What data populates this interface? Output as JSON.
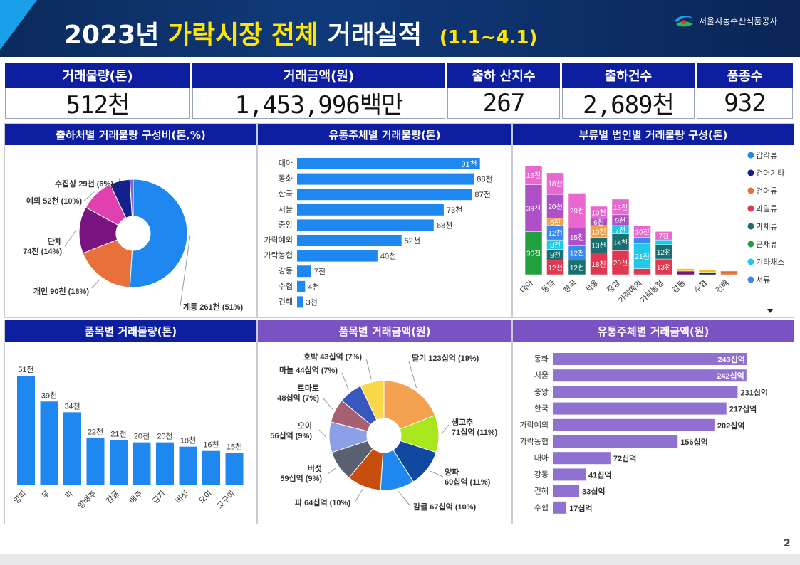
{
  "header": {
    "title_year": "2023년",
    "title_highlight": "가락시장 전체",
    "title_rest": "거래실적",
    "period": "(1.1~4.1)",
    "org": "서울시농수산식품공사"
  },
  "kpis": [
    {
      "label": "거래물량(톤)",
      "value": "512천"
    },
    {
      "label": "거래금액(원)",
      "value": "1,453,996백만"
    },
    {
      "label": "출하 산지수",
      "value": "267"
    },
    {
      "label": "출하건수",
      "value": "2,689천"
    },
    {
      "label": "품종수",
      "value": "932"
    }
  ],
  "page_number": "2",
  "colors": {
    "navy": "#0d1ea0",
    "purple": "#7a52c4",
    "bar_blue": "#1e88f0",
    "bar_purple": "#9070d0"
  },
  "chart_data": [
    {
      "id": "shipper-donut",
      "type": "pie",
      "title": "출하처별 거래물량 구성비(톤,%)",
      "slices": [
        {
          "label": "계통 261천 (51%)",
          "value": 51,
          "color": "#1e88f0"
        },
        {
          "label": "개인 90천 (18%)",
          "value": 18,
          "color": "#e8703a"
        },
        {
          "label": "단체 74천 (14%)",
          "value": 14,
          "color": "#7a1480"
        },
        {
          "label": "예외 52천 (10%)",
          "value": 10,
          "color": "#e040b0"
        },
        {
          "label": "수집상 29천 (6%)",
          "value": 6,
          "color": "#14208c"
        },
        {
          "label": "",
          "value": 1,
          "color": "#8c64d0"
        }
      ]
    },
    {
      "id": "distributor-volume",
      "type": "bar",
      "title": "유통주체별 거래물량(톤)",
      "categories": [
        "대아",
        "동화",
        "한국",
        "서울",
        "중앙",
        "가락예외",
        "가락농협",
        "강동",
        "수협",
        "건해"
      ],
      "values": [
        91,
        88,
        87,
        73,
        68,
        52,
        40,
        7,
        4,
        3
      ],
      "labels": [
        "91천",
        "88천",
        "87천",
        "73천",
        "68천",
        "52천",
        "40천",
        "7천",
        "4천",
        "3천"
      ],
      "xlim": [
        0,
        95
      ]
    },
    {
      "id": "corp-category",
      "type": "bar",
      "title": "부류별 법인별 거래물량 구성(톤)",
      "categories": [
        "대아",
        "동화",
        "한국",
        "서울",
        "중앙",
        "가락예외",
        "가락농협",
        "강동",
        "수협",
        "건해"
      ],
      "legend": [
        {
          "name": "갑각류",
          "color": "#1e88f0"
        },
        {
          "name": "건어기타",
          "color": "#14208c"
        },
        {
          "name": "건어류",
          "color": "#e8703a"
        },
        {
          "name": "과일류",
          "color": "#e03850"
        },
        {
          "name": "과채류",
          "color": "#1a7070"
        },
        {
          "name": "근채류",
          "color": "#22a040"
        },
        {
          "name": "기타채소",
          "color": "#22c8e8"
        },
        {
          "name": "서류",
          "color": "#3888f0"
        }
      ],
      "stacks": [
        [
          {
            "v": 36,
            "c": "#22a040",
            "t": "36천"
          },
          {
            "v": 39,
            "c": "#b050c8",
            "t": "39천"
          },
          {
            "v": 16,
            "c": "#e868d0",
            "t": "16천"
          }
        ],
        [
          {
            "v": 12,
            "c": "#e03850",
            "t": "12천"
          },
          {
            "v": 9,
            "c": "#1a7070",
            "t": "9천"
          },
          {
            "v": 8,
            "c": "#22c8e8",
            "t": "8천"
          },
          {
            "v": 12,
            "c": "#3888f0",
            "t": "12천"
          },
          {
            "v": 6,
            "c": "#f0a048",
            "t": "6천"
          },
          {
            "v": 20,
            "c": "#b050c8",
            "t": "20천"
          },
          {
            "v": 18,
            "c": "#e868d0",
            "t": "18천"
          }
        ],
        [
          {
            "v": 12,
            "c": "#1a7070",
            "t": "12천"
          },
          {
            "v": 12,
            "c": "#3888f0",
            "t": "12천"
          },
          {
            "v": 15,
            "c": "#b050c8",
            "t": "15천"
          },
          {
            "v": 29,
            "c": "#e868d0",
            "t": "29천"
          }
        ],
        [
          {
            "v": 18,
            "c": "#e03850",
            "t": "18천"
          },
          {
            "v": 13,
            "c": "#1a7070",
            "t": "13천"
          },
          {
            "v": 10,
            "c": "#f0a048",
            "t": "10천"
          },
          {
            "v": 6,
            "c": "#b050c8",
            "t": "6천"
          },
          {
            "v": 10,
            "c": "#e868d0",
            "t": "10천"
          }
        ],
        [
          {
            "v": 20,
            "c": "#e03850",
            "t": "20천"
          },
          {
            "v": 14,
            "c": "#1a7070",
            "t": "14천"
          },
          {
            "v": 7,
            "c": "#22c8e8",
            "t": "7천"
          },
          {
            "v": 9,
            "c": "#b050c8",
            "t": "9천"
          },
          {
            "v": 13,
            "c": "#e868d0",
            "t": "13천"
          }
        ],
        [
          {
            "v": 5,
            "c": "#e03850",
            "t": ""
          },
          {
            "v": 21,
            "c": "#22c8e8",
            "t": "21천"
          },
          {
            "v": 5,
            "c": "#3888f0",
            "t": ""
          },
          {
            "v": 10,
            "c": "#e868d0",
            "t": "10천"
          }
        ],
        [
          {
            "v": 13,
            "c": "#e03850",
            "t": "13천"
          },
          {
            "v": 12,
            "c": "#1a7070",
            "t": "12천"
          },
          {
            "v": 4,
            "c": "#22c8e8",
            "t": ""
          },
          {
            "v": 7,
            "c": "#e868d0",
            "t": "7천"
          }
        ],
        [
          {
            "v": 3,
            "c": "#7a1480",
            "t": ""
          },
          {
            "v": 2,
            "c": "#f0c020",
            "t": ""
          }
        ],
        [
          {
            "v": 2,
            "c": "#14208c",
            "t": ""
          },
          {
            "v": 2,
            "c": "#f0c020",
            "t": ""
          }
        ],
        [
          {
            "v": 3,
            "c": "#e8703a",
            "t": ""
          }
        ]
      ],
      "ylim": [
        0,
        95
      ]
    },
    {
      "id": "item-volume",
      "type": "bar",
      "title": "품목별 거래물량(톤)",
      "categories": [
        "양파",
        "무",
        "파",
        "양배추",
        "감귤",
        "배추",
        "감자",
        "버섯",
        "오이",
        "고구마"
      ],
      "values": [
        51,
        39,
        34,
        22,
        21,
        20,
        20,
        18,
        16,
        15
      ],
      "labels": [
        "51천",
        "39천",
        "34천",
        "22천",
        "21천",
        "20천",
        "20천",
        "18천",
        "16천",
        "15천"
      ],
      "ylim": [
        0,
        55
      ]
    },
    {
      "id": "item-amount",
      "type": "pie",
      "title": "품목별 거래금액(원)",
      "slices": [
        {
          "label": "딸기 123십억 (19%)",
          "value": 19,
          "color": "#f4a250"
        },
        {
          "label": "생고추 71십억 (11%)",
          "value": 11,
          "color": "#a8e61e"
        },
        {
          "label": "양파 69십억 (11%)",
          "value": 11,
          "color": "#0f4aa0"
        },
        {
          "label": "감귤 67십억 (10%)",
          "value": 10,
          "color": "#1e88f0"
        },
        {
          "label": "파 64십억 (10%)",
          "value": 10,
          "color": "#c84e10"
        },
        {
          "label": "버섯 59십억 (9%)",
          "value": 9,
          "color": "#5a6070"
        },
        {
          "label": "오이 56십억 (9%)",
          "value": 9,
          "color": "#8ca0e8"
        },
        {
          "label": "토마토 48십억 (7%)",
          "value": 7,
          "color": "#a86070"
        },
        {
          "label": "마늘 44십억 (7%)",
          "value": 7,
          "color": "#3858c0"
        },
        {
          "label": "호박 43십억 (7%)",
          "value": 7,
          "color": "#f8d848"
        }
      ]
    },
    {
      "id": "distributor-amount",
      "type": "bar",
      "title": "유통주체별 거래금액(원)",
      "categories": [
        "동화",
        "서울",
        "중앙",
        "한국",
        "가락예외",
        "가락농협",
        "대아",
        "강동",
        "건해",
        "수협"
      ],
      "values": [
        243,
        242,
        231,
        217,
        202,
        156,
        72,
        41,
        33,
        17
      ],
      "labels": [
        "243십억",
        "242십억",
        "231십억",
        "217십억",
        "202십억",
        "156십억",
        "72십억",
        "41십억",
        "33십억",
        "17십억"
      ],
      "xlim": [
        0,
        260
      ]
    }
  ]
}
